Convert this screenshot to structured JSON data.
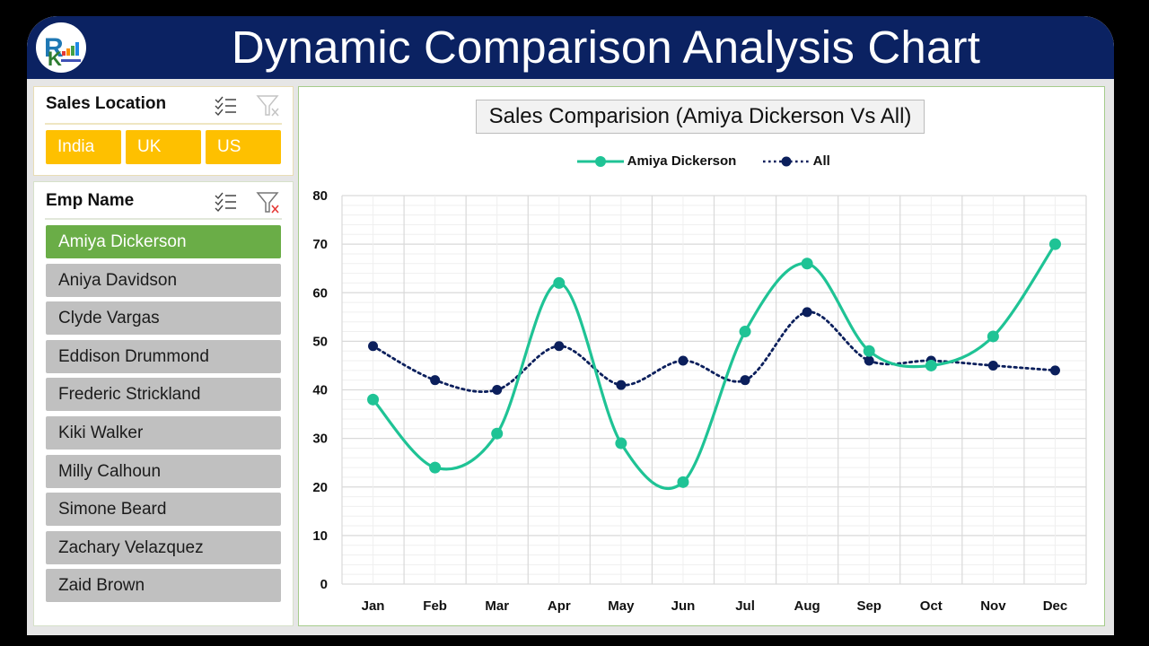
{
  "header": {
    "title": "Dynamic Comparison Analysis Chart",
    "logo": "rk-logo-icon",
    "colors": {
      "header_bg": "#0b2262",
      "title_text": "#ffffff"
    }
  },
  "slicers": {
    "location": {
      "title": "Sales Location",
      "multi_select_icon": "multi-select-icon",
      "clear_filter_icon": "clear-filter-icon",
      "items": [
        {
          "label": "India",
          "selected": true
        },
        {
          "label": "UK",
          "selected": true
        },
        {
          "label": "US",
          "selected": true
        }
      ],
      "selected_color": "#fec000"
    },
    "employee": {
      "title": "Emp Name",
      "multi_select_icon": "multi-select-icon",
      "clear_filter_icon": "clear-filter-icon",
      "items": [
        {
          "label": "Amiya Dickerson",
          "selected": true
        },
        {
          "label": "Aniya Davidson",
          "selected": false
        },
        {
          "label": "Clyde Vargas",
          "selected": false
        },
        {
          "label": "Eddison Drummond",
          "selected": false
        },
        {
          "label": "Frederic Strickland",
          "selected": false
        },
        {
          "label": "Kiki Walker",
          "selected": false
        },
        {
          "label": "Milly Calhoun",
          "selected": false
        },
        {
          "label": "Simone Beard",
          "selected": false
        },
        {
          "label": "Zachary Velazquez",
          "selected": false
        },
        {
          "label": "Zaid Brown",
          "selected": false
        }
      ],
      "selected_color": "#6aad47",
      "unselected_color": "#c0c0c0"
    }
  },
  "chart": {
    "title": "Sales Comparision (Amiya Dickerson Vs All)",
    "legend": [
      {
        "label": "Amiya Dickerson",
        "color": "#1fc395",
        "style": "solid"
      },
      {
        "label": "All",
        "color": "#0b1f5c",
        "style": "dotted"
      }
    ]
  },
  "chart_data": {
    "type": "line",
    "title": "Sales Comparision (Amiya Dickerson Vs All)",
    "xlabel": "",
    "ylabel": "",
    "categories": [
      "Jan",
      "Feb",
      "Mar",
      "Apr",
      "May",
      "Jun",
      "Jul",
      "Aug",
      "Sep",
      "Oct",
      "Nov",
      "Dec"
    ],
    "series": [
      {
        "name": "Amiya Dickerson",
        "values": [
          38,
          24,
          31,
          62,
          29,
          21,
          52,
          66,
          48,
          45,
          51,
          70
        ],
        "color": "#1fc395",
        "line": "solid-smooth"
      },
      {
        "name": "All",
        "values": [
          49,
          42,
          40,
          49,
          41,
          46,
          42,
          56,
          46,
          46,
          45,
          44
        ],
        "color": "#0b1f5c",
        "line": "dotted-smooth"
      }
    ],
    "ylim": [
      0,
      80
    ],
    "yticks": [
      0,
      10,
      20,
      30,
      40,
      50,
      60,
      70,
      80
    ],
    "grid": true,
    "legend_position": "top"
  }
}
